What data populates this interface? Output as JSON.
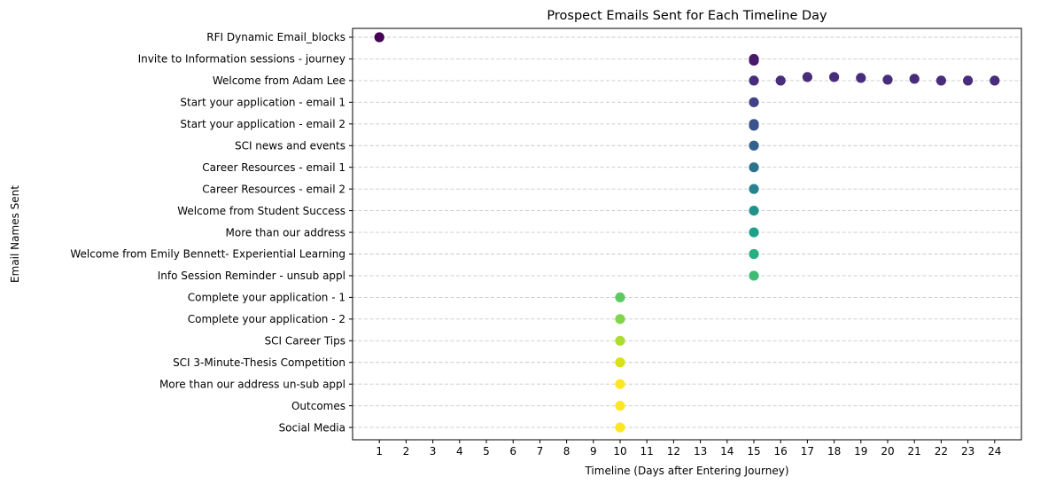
{
  "chart_data": {
    "type": "scatter",
    "title": "Prospect Emails Sent for Each Timeline Day",
    "xlabel": "Timeline (Days after Entering Journey)",
    "ylabel": "Email Names Sent",
    "x_ticks": [
      1,
      2,
      3,
      4,
      5,
      6,
      7,
      8,
      9,
      10,
      11,
      12,
      13,
      14,
      15,
      16,
      17,
      18,
      19,
      20,
      21,
      22,
      23,
      24
    ],
    "xlim": [
      0.0,
      25.0
    ],
    "grid": "horizontal-dashed",
    "colormap": "viridis",
    "categories": [
      "RFI Dynamic Email_blocks",
      "Invite to Information sessions - journey",
      "Welcome from Adam Lee",
      "Start your application - email 1",
      "Start your application - email 2",
      "SCI news and events",
      "Career Resources - email 1",
      "Career Resources - email 2",
      "Welcome from Student Success ",
      "More than our address",
      "Welcome from Emily Bennett- Experiential Learning",
      "Info Session Reminder - unsub appl",
      "Complete your application - 1",
      "Complete your application - 2",
      "SCI Career Tips",
      "SCI 3-Minute-Thesis Competition",
      "More than our address un-sub appl",
      "Outcomes",
      "Social Media"
    ],
    "points": [
      {
        "x": 1,
        "y": "RFI Dynamic Email_blocks",
        "color": "#440154"
      },
      {
        "x": 15,
        "y": "Invite to Information sessions - journey",
        "color": "#48186a"
      },
      {
        "x": 15,
        "y": "Invite to Information sessions - journey",
        "color": "#48186a"
      },
      {
        "x": 15,
        "y": "Welcome from Adam Lee",
        "color": "#472d7b"
      },
      {
        "x": 16,
        "y": "Welcome from Adam Lee",
        "color": "#472d7b"
      },
      {
        "x": 17,
        "y": "Welcome from Adam Lee",
        "color": "#472d7b"
      },
      {
        "x": 18,
        "y": "Welcome from Adam Lee",
        "color": "#472d7b"
      },
      {
        "x": 19,
        "y": "Welcome from Adam Lee",
        "color": "#472d7b"
      },
      {
        "x": 20,
        "y": "Welcome from Adam Lee",
        "color": "#472d7b"
      },
      {
        "x": 21,
        "y": "Welcome from Adam Lee",
        "color": "#472d7b"
      },
      {
        "x": 22,
        "y": "Welcome from Adam Lee",
        "color": "#472d7b"
      },
      {
        "x": 23,
        "y": "Welcome from Adam Lee",
        "color": "#472d7b"
      },
      {
        "x": 24,
        "y": "Welcome from Adam Lee",
        "color": "#472d7b"
      },
      {
        "x": 15,
        "y": "Start your application - email 1",
        "color": "#424086"
      },
      {
        "x": 15,
        "y": "Start your application - email 2",
        "color": "#3b528b"
      },
      {
        "x": 15,
        "y": "Start your application - email 2",
        "color": "#3b528b"
      },
      {
        "x": 15,
        "y": "SCI news and events",
        "color": "#33638d"
      },
      {
        "x": 15,
        "y": "Career Resources - email 1",
        "color": "#2c728e"
      },
      {
        "x": 15,
        "y": "Career Resources - email 2",
        "color": "#26828e"
      },
      {
        "x": 15,
        "y": "Welcome from Student Success ",
        "color": "#21918c"
      },
      {
        "x": 15,
        "y": "More than our address",
        "color": "#1fa088"
      },
      {
        "x": 15,
        "y": "Welcome from Emily Bennett- Experiential Learning",
        "color": "#28ae80"
      },
      {
        "x": 15,
        "y": "Info Session Reminder - unsub appl",
        "color": "#3fbc73"
      },
      {
        "x": 10,
        "y": "Complete your application - 1",
        "color": "#5ec962"
      },
      {
        "x": 10,
        "y": "Complete your application - 2",
        "color": "#84d44b"
      },
      {
        "x": 10,
        "y": "SCI Career Tips",
        "color": "#addc30"
      },
      {
        "x": 10,
        "y": "SCI 3-Minute-Thesis Competition",
        "color": "#d8e219"
      },
      {
        "x": 10,
        "y": "More than our address un-sub appl",
        "color": "#fde725"
      },
      {
        "x": 10,
        "y": "Outcomes",
        "color": "#fde725"
      },
      {
        "x": 10,
        "y": "Social Media",
        "color": "#fde725"
      }
    ]
  }
}
